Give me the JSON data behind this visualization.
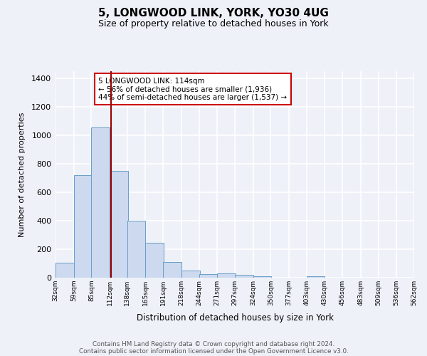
{
  "title1": "5, LONGWOOD LINK, YORK, YO30 4UG",
  "title2": "Size of property relative to detached houses in York",
  "xlabel": "Distribution of detached houses by size in York",
  "ylabel": "Number of detached properties",
  "bar_left_edges": [
    32,
    59,
    85,
    112,
    138,
    165,
    191,
    218,
    244,
    271,
    297,
    324,
    350,
    377,
    403,
    430,
    456,
    483,
    509,
    536
  ],
  "bar_heights": [
    105,
    720,
    1055,
    750,
    400,
    245,
    110,
    48,
    25,
    28,
    22,
    10,
    0,
    0,
    12,
    0,
    0,
    0,
    0,
    0
  ],
  "bin_width": 27,
  "tick_labels": [
    "32sqm",
    "59sqm",
    "85sqm",
    "112sqm",
    "138sqm",
    "165sqm",
    "191sqm",
    "218sqm",
    "244sqm",
    "271sqm",
    "297sqm",
    "324sqm",
    "350sqm",
    "377sqm",
    "403sqm",
    "430sqm",
    "456sqm",
    "483sqm",
    "509sqm",
    "536sqm",
    "562sqm"
  ],
  "bar_color": "#ccd9ee",
  "bar_edge_color": "#6a9ec8",
  "property_line_x": 114,
  "property_line_color": "#990000",
  "annotation_line1": "5 LONGWOOD LINK: 114sqm",
  "annotation_line2": "← 56% of detached houses are smaller (1,936)",
  "annotation_line3": "44% of semi-detached houses are larger (1,537) →",
  "annotation_box_facecolor": "#ffffff",
  "annotation_box_edgecolor": "#cc0000",
  "ylim_max": 1450,
  "yticks": [
    0,
    200,
    400,
    600,
    800,
    1000,
    1200,
    1400
  ],
  "bg_color": "#eef1f8",
  "grid_color": "#ffffff",
  "footer1": "Contains HM Land Registry data © Crown copyright and database right 2024.",
  "footer2": "Contains public sector information licensed under the Open Government Licence v3.0."
}
